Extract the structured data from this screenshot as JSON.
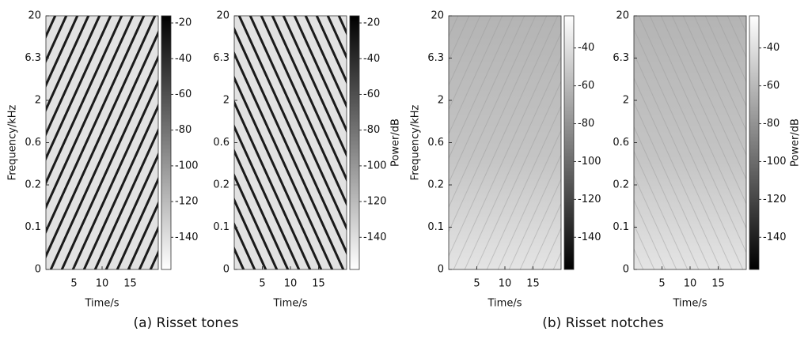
{
  "chart_data": [
    {
      "type": "spectrogram",
      "xlabel": "Time/s",
      "ylabel": "Frequency/kHz",
      "xlim": [
        0,
        20
      ],
      "xticks": [
        5,
        10,
        15
      ],
      "yticks": [
        0,
        0.1,
        0.2,
        0.6,
        2,
        6.3,
        20
      ],
      "colormap": "gray_r",
      "direction": "rising",
      "clim": [
        -158,
        -16
      ],
      "cticks": [
        -20,
        -40,
        -60,
        -80,
        -100,
        -120,
        -140
      ]
    },
    {
      "type": "spectrogram",
      "xlabel": "Time/s",
      "xlim": [
        0,
        20
      ],
      "xticks": [
        5,
        10,
        15
      ],
      "yticks": [
        0,
        0.1,
        0.2,
        0.6,
        2,
        6.3,
        20
      ],
      "colormap": "gray_r",
      "direction": "falling",
      "clim": [
        -158,
        -16
      ],
      "cticks": [
        -20,
        -40,
        -60,
        -80,
        -100,
        -120,
        -140
      ],
      "clabel": "Power/dB"
    },
    {
      "type": "spectrogram",
      "xlabel": "Time/s",
      "ylabel": "Frequency/kHz",
      "xlim": [
        0,
        20
      ],
      "xticks": [
        5,
        10,
        15
      ],
      "yticks": [
        0,
        0.1,
        0.2,
        0.6,
        2,
        6.3,
        20
      ],
      "colormap": "gray",
      "direction": "rising",
      "clim": [
        -157,
        -23
      ],
      "cticks": [
        -40,
        -60,
        -80,
        -100,
        -120,
        -140
      ]
    },
    {
      "type": "spectrogram",
      "xlabel": "Time/s",
      "xlim": [
        0,
        20
      ],
      "xticks": [
        5,
        10,
        15
      ],
      "yticks": [
        0,
        0.1,
        0.2,
        0.6,
        2,
        6.3,
        20
      ],
      "colormap": "gray",
      "direction": "falling",
      "clim": [
        -157,
        -23
      ],
      "cticks": [
        -40,
        -60,
        -80,
        -100,
        -120,
        -140
      ],
      "clabel": "Power/dB"
    }
  ],
  "captions": [
    "(a) Risset tones",
    "(b) Risset notches"
  ]
}
